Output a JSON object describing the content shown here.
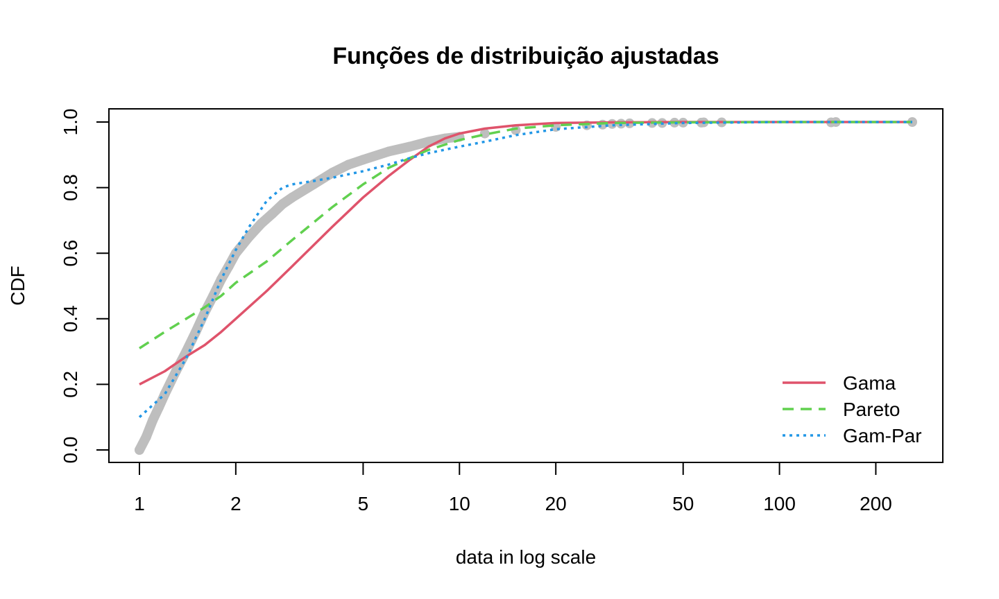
{
  "chart_data": {
    "type": "line",
    "title": "Funções de distribuição ajustadas",
    "xlabel": "data in log scale",
    "ylabel": "CDF",
    "x_scale": "log",
    "xlim": [
      1,
      260
    ],
    "ylim": [
      0,
      1
    ],
    "grid": false,
    "legend_position": "bottom-right",
    "x_ticks": [
      {
        "value": 1,
        "label": "1"
      },
      {
        "value": 2,
        "label": "2"
      },
      {
        "value": 5,
        "label": "5"
      },
      {
        "value": 10,
        "label": "10"
      },
      {
        "value": 20,
        "label": "20"
      },
      {
        "value": 50,
        "label": "50"
      },
      {
        "value": 100,
        "label": "100"
      },
      {
        "value": 200,
        "label": "200"
      }
    ],
    "y_ticks": [
      {
        "value": 0.0,
        "label": "0.0"
      },
      {
        "value": 0.2,
        "label": "0.2"
      },
      {
        "value": 0.4,
        "label": "0.4"
      },
      {
        "value": 0.6,
        "label": "0.6"
      },
      {
        "value": 0.8,
        "label": "0.8"
      },
      {
        "value": 1.0,
        "label": "1.0"
      }
    ],
    "empirical": {
      "color": "#BEBEBE",
      "x": [
        1.0,
        1.05,
        1.1,
        1.15,
        1.2,
        1.3,
        1.4,
        1.5,
        1.6,
        1.7,
        1.8,
        1.9,
        2.0,
        2.2,
        2.4,
        2.6,
        2.8,
        3.0,
        3.5,
        4.0,
        4.5,
        5.0,
        6.0,
        7.0,
        8.0,
        9.0,
        10.0,
        12.0,
        15.0,
        20.0,
        25.0,
        28.0,
        30.0,
        32.0,
        34.0,
        40.0,
        43.0,
        47.0,
        50.0,
        57.0,
        58.0,
        66.0,
        145.0,
        150.0,
        260.0
      ],
      "y": [
        0.0,
        0.04,
        0.09,
        0.13,
        0.17,
        0.24,
        0.3,
        0.36,
        0.42,
        0.47,
        0.52,
        0.56,
        0.6,
        0.65,
        0.69,
        0.72,
        0.75,
        0.77,
        0.81,
        0.845,
        0.87,
        0.885,
        0.91,
        0.925,
        0.94,
        0.95,
        0.955,
        0.965,
        0.975,
        0.985,
        0.99,
        0.992,
        0.994,
        0.995,
        0.996,
        0.997,
        0.997,
        0.998,
        0.998,
        0.998,
        0.999,
        0.999,
        0.999,
        1.0,
        1.0
      ]
    },
    "series": [
      {
        "name": "Gama",
        "color": "#DF536B",
        "dash": "solid",
        "x": [
          1.0,
          1.2,
          1.4,
          1.6,
          1.8,
          2.0,
          2.5,
          3.0,
          4.0,
          5.0,
          6.0,
          7.0,
          8.0,
          9.0,
          10.0,
          12.0,
          15.0,
          20.0,
          30.0,
          50.0,
          100.0,
          260.0
        ],
        "y": [
          0.2,
          0.24,
          0.285,
          0.32,
          0.36,
          0.4,
          0.485,
          0.56,
          0.68,
          0.77,
          0.835,
          0.885,
          0.925,
          0.95,
          0.965,
          0.98,
          0.99,
          0.997,
          0.999,
          1.0,
          1.0,
          1.0
        ]
      },
      {
        "name": "Pareto",
        "color": "#61D04F",
        "dash": "dashed",
        "x": [
          1.0,
          1.2,
          1.4,
          1.6,
          1.8,
          2.0,
          2.5,
          3.0,
          4.0,
          5.0,
          6.0,
          7.0,
          8.0,
          10.0,
          12.0,
          15.0,
          20.0,
          30.0,
          50.0,
          100.0,
          260.0
        ],
        "y": [
          0.31,
          0.36,
          0.4,
          0.435,
          0.47,
          0.51,
          0.575,
          0.64,
          0.74,
          0.81,
          0.86,
          0.89,
          0.915,
          0.945,
          0.962,
          0.98,
          0.99,
          0.997,
          0.999,
          1.0,
          1.0
        ]
      },
      {
        "name": "Gam-Par",
        "color": "#2297E6",
        "dash": "dotted",
        "x": [
          1.0,
          1.2,
          1.4,
          1.6,
          1.8,
          2.0,
          2.2,
          2.5,
          2.8,
          3.0,
          3.5,
          4.0,
          5.0,
          6.0,
          7.0,
          8.0,
          10.0,
          12.0,
          15.0,
          20.0,
          30.0,
          50.0,
          100.0,
          260.0
        ],
        "y": [
          0.1,
          0.17,
          0.28,
          0.4,
          0.52,
          0.61,
          0.68,
          0.76,
          0.8,
          0.81,
          0.82,
          0.83,
          0.85,
          0.87,
          0.89,
          0.905,
          0.925,
          0.94,
          0.96,
          0.978,
          0.99,
          0.997,
          1.0,
          1.0
        ]
      }
    ]
  }
}
